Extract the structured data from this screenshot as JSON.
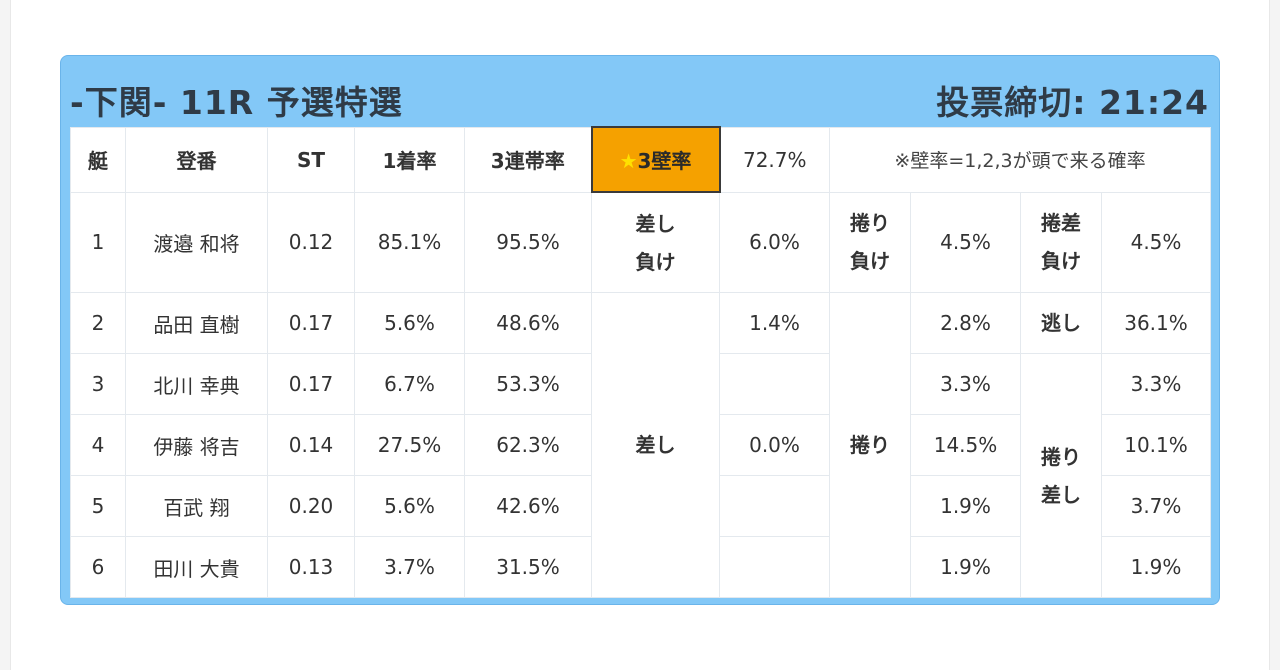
{
  "header": {
    "title": "-下関- 11R 予選特選",
    "deadline": "投票締切: 21:24"
  },
  "columns": {
    "boat": "艇",
    "name": "登番",
    "st": "ST",
    "first_rate": "1着率",
    "top3_rate": "3連帯率",
    "wall_rate_label": "3壁率",
    "wall_rate_star": "★",
    "wall_rate_value": "72.7%",
    "note": "※壁率=1,2,3が頭で来る確率"
  },
  "rows": [
    {
      "boat": "1",
      "name": "渡邉 和将",
      "st": "0.12",
      "first": "85.1%",
      "top3": "95.5%"
    },
    {
      "boat": "2",
      "name": "品田 直樹",
      "st": "0.17",
      "first": "5.6%",
      "top3": "48.6%"
    },
    {
      "boat": "3",
      "name": "北川 幸典",
      "st": "0.17",
      "first": "6.7%",
      "top3": "53.3%"
    },
    {
      "boat": "4",
      "name": "伊藤 将吉",
      "st": "0.14",
      "first": "27.5%",
      "top3": "62.3%"
    },
    {
      "boat": "5",
      "name": "百武 翔",
      "st": "0.20",
      "first": "5.6%",
      "top3": "42.6%"
    },
    {
      "boat": "6",
      "name": "田川 大貴",
      "st": "0.13",
      "first": "3.7%",
      "top3": "31.5%"
    }
  ],
  "outcomes": {
    "sashi_make": {
      "label_1": "差し",
      "label_2": "負け",
      "value": "6.0%"
    },
    "makuri_make": {
      "label_1": "捲り",
      "label_2": "負け",
      "value": "4.5%"
    },
    "makurisashi_make": {
      "label_1": "捲差",
      "label_2": "負け",
      "value": "4.5%"
    },
    "sashi": {
      "label": "差し",
      "r2": "1.4%",
      "r3": "",
      "r4": "0.0%",
      "r5": "",
      "r6": ""
    },
    "makuri": {
      "label": "捲り",
      "r2": "2.8%",
      "r3": "3.3%",
      "r4": "14.5%",
      "r5": "1.9%",
      "r6": "1.9%"
    },
    "nigashi": {
      "label": "逃し",
      "value": "36.1%"
    },
    "makurisashi": {
      "label_1": "捲り",
      "label_2": "差し",
      "r3": "3.3%",
      "r4": "10.1%",
      "r5": "3.7%",
      "r6": "1.9%"
    }
  }
}
